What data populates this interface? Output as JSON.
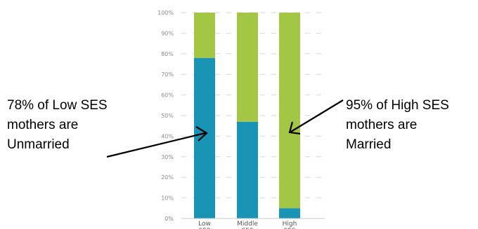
{
  "chart_data": {
    "type": "bar",
    "stacked": true,
    "categories": [
      [
        "Low",
        "SES"
      ],
      [
        "Middle",
        "SES"
      ],
      [
        "High",
        "SES"
      ]
    ],
    "series": [
      {
        "values": [
          78,
          47,
          5
        ],
        "color": "#1a94b5"
      },
      {
        "values": [
          22,
          53,
          95
        ],
        "color": "#a3c644"
      }
    ],
    "ylim": [
      0,
      100
    ],
    "yticks": [
      "0%",
      "10%",
      "20%",
      "30%",
      "40%",
      "50%",
      "60%",
      "70%",
      "80%",
      "90%",
      "100%"
    ],
    "grid": "dashed horizontal",
    "annotations": {
      "left": [
        "78% of Low SES",
        "mothers are",
        "Unmarried"
      ],
      "right": [
        "95% of High SES",
        "mothers are",
        "Married"
      ]
    }
  }
}
